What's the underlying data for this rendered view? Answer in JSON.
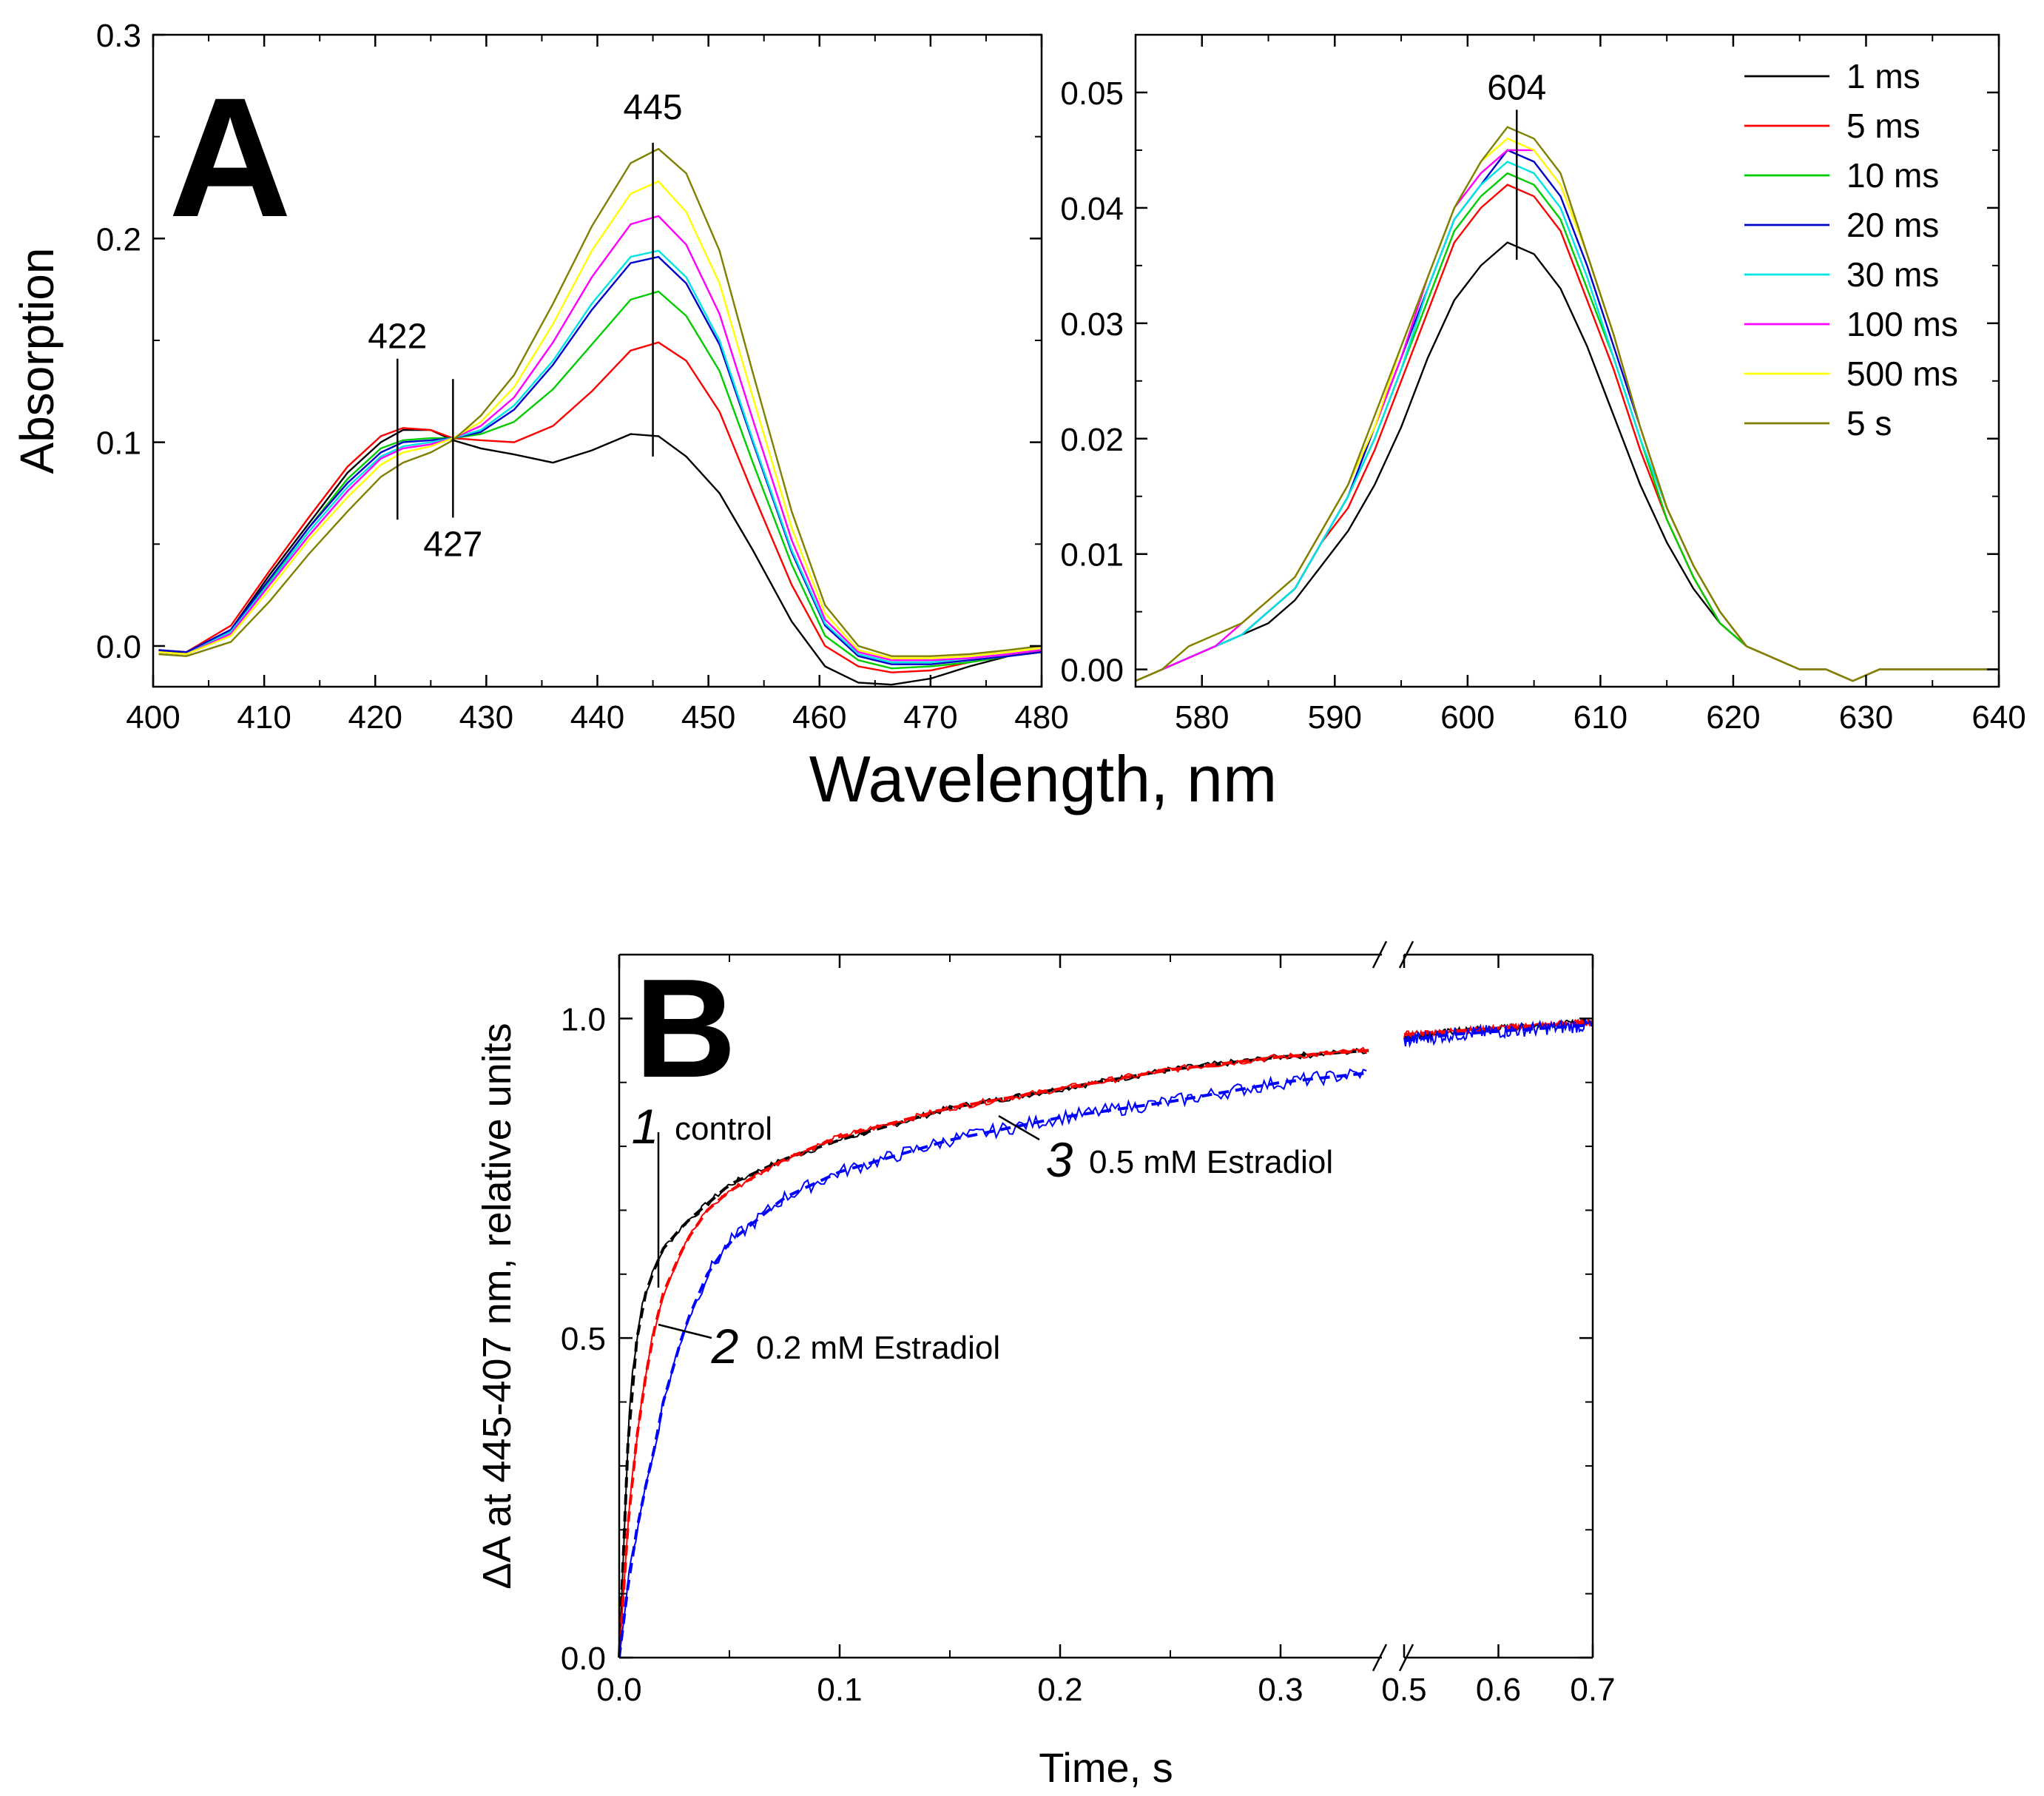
{
  "figure": {
    "panel_a_label": "A",
    "panel_b_label": "B",
    "shared_xlabel_a": "Wavelength, nm"
  },
  "chart_data": [
    {
      "id": "A-left",
      "type": "line",
      "title": "",
      "xlabel": "Wavelength, nm",
      "ylabel": "Absorption",
      "xlim": [
        400,
        480
      ],
      "ylim": [
        -0.02,
        0.3
      ],
      "xticks": [
        400,
        410,
        420,
        430,
        440,
        450,
        460,
        470,
        480
      ],
      "xtick_labels": [
        "400",
        "410",
        "420",
        "430",
        "440",
        "450",
        "460",
        "470",
        "480"
      ],
      "yticks": [
        0.0,
        0.1,
        0.2,
        0.3
      ],
      "ytick_labels": [
        "0.0",
        "0.1",
        "0.2",
        "0.3"
      ],
      "x": [
        400.5,
        403,
        407,
        410.5,
        414,
        417.5,
        420.5,
        422.5,
        425,
        427,
        429.5,
        432.5,
        436,
        439.5,
        443,
        445.5,
        448,
        451,
        454,
        457.5,
        460.5,
        463.5,
        466.5,
        470,
        473.5,
        477,
        480
      ],
      "series": [
        {
          "name": "1 ms",
          "color": "#000000",
          "values": [
            -0.002,
            -0.004,
            0.008,
            0.035,
            0.06,
            0.085,
            0.1,
            0.106,
            0.106,
            0.101,
            0.097,
            0.094,
            0.09,
            0.096,
            0.104,
            0.103,
            0.093,
            0.075,
            0.047,
            0.012,
            -0.01,
            -0.018,
            -0.019,
            -0.016,
            -0.01,
            -0.005,
            -0.003
          ]
        },
        {
          "name": "5 ms",
          "color": "#ff0000",
          "values": [
            -0.002,
            -0.003,
            0.01,
            0.037,
            0.063,
            0.088,
            0.103,
            0.107,
            0.106,
            0.102,
            0.101,
            0.1,
            0.108,
            0.125,
            0.145,
            0.149,
            0.14,
            0.115,
            0.075,
            0.03,
            0.0,
            -0.01,
            -0.013,
            -0.012,
            -0.008,
            -0.005,
            -0.002
          ]
        },
        {
          "name": "10 ms",
          "color": "#00cc00",
          "values": [
            -0.003,
            -0.004,
            0.007,
            0.032,
            0.058,
            0.082,
            0.097,
            0.101,
            0.102,
            0.102,
            0.104,
            0.11,
            0.126,
            0.148,
            0.17,
            0.174,
            0.162,
            0.135,
            0.09,
            0.04,
            0.005,
            -0.007,
            -0.011,
            -0.01,
            -0.008,
            -0.005,
            -0.003
          ]
        },
        {
          "name": "20 ms",
          "color": "#0000cc",
          "values": [
            -0.002,
            -0.003,
            0.008,
            0.033,
            0.058,
            0.08,
            0.095,
            0.1,
            0.101,
            0.102,
            0.105,
            0.116,
            0.138,
            0.165,
            0.188,
            0.191,
            0.178,
            0.148,
            0.1,
            0.046,
            0.01,
            -0.005,
            -0.009,
            -0.009,
            -0.007,
            -0.005,
            -0.003
          ]
        },
        {
          "name": "30 ms",
          "color": "#00e5e5",
          "values": [
            -0.003,
            -0.004,
            0.007,
            0.031,
            0.056,
            0.078,
            0.093,
            0.098,
            0.1,
            0.102,
            0.106,
            0.118,
            0.14,
            0.168,
            0.191,
            0.194,
            0.181,
            0.15,
            0.101,
            0.047,
            0.011,
            -0.004,
            -0.008,
            -0.008,
            -0.006,
            -0.004,
            -0.002
          ]
        },
        {
          "name": "100 ms",
          "color": "#ff00ff",
          "values": [
            -0.003,
            -0.004,
            0.006,
            0.03,
            0.054,
            0.076,
            0.092,
            0.097,
            0.099,
            0.102,
            0.108,
            0.122,
            0.149,
            0.181,
            0.207,
            0.211,
            0.197,
            0.163,
            0.111,
            0.052,
            0.013,
            -0.003,
            -0.007,
            -0.007,
            -0.006,
            -0.004,
            -0.002
          ]
        },
        {
          "name": "500 ms",
          "color": "#ffff00",
          "values": [
            -0.003,
            -0.004,
            0.005,
            0.028,
            0.052,
            0.073,
            0.089,
            0.095,
            0.098,
            0.102,
            0.11,
            0.127,
            0.158,
            0.194,
            0.222,
            0.228,
            0.213,
            0.178,
            0.122,
            0.058,
            0.016,
            -0.002,
            -0.006,
            -0.006,
            -0.005,
            -0.003,
            -0.001
          ]
        },
        {
          "name": "5 s",
          "color": "#808000",
          "values": [
            -0.004,
            -0.005,
            0.002,
            0.022,
            0.045,
            0.066,
            0.083,
            0.09,
            0.095,
            0.101,
            0.113,
            0.133,
            0.168,
            0.206,
            0.237,
            0.244,
            0.232,
            0.194,
            0.134,
            0.066,
            0.02,
            0.0,
            -0.005,
            -0.005,
            -0.004,
            -0.002,
            0.0
          ]
        }
      ],
      "annotations": [
        {
          "text": "422",
          "x": 422,
          "y1": 0.062,
          "y2": 0.141
        },
        {
          "text": "427",
          "x": 427,
          "y1": 0.063,
          "y2": 0.131
        },
        {
          "text": "445",
          "x": 445,
          "y1": 0.093,
          "y2": 0.247
        }
      ]
    },
    {
      "id": "A-right",
      "type": "line",
      "title": "",
      "xlabel": "Wavelength, nm",
      "ylabel": "",
      "xlim": [
        575,
        640
      ],
      "ylim": [
        -0.0015,
        0.055
      ],
      "xticks": [
        580,
        590,
        600,
        610,
        620,
        630,
        640
      ],
      "xtick_labels": [
        "580",
        "590",
        "600",
        "610",
        "620",
        "630",
        "640"
      ],
      "yticks": [
        0.0,
        0.01,
        0.02,
        0.03,
        0.04,
        0.05
      ],
      "ytick_labels": [
        "0.00",
        "0.01",
        "0.02",
        "0.03",
        "0.04",
        "0.05"
      ],
      "x": [
        575,
        577,
        579,
        581,
        583,
        585,
        587,
        589,
        591,
        593,
        595,
        597,
        599,
        601,
        603,
        605,
        607,
        609,
        611,
        613,
        615,
        617,
        619,
        621,
        623,
        625,
        627,
        629,
        631,
        633,
        635,
        637,
        639,
        640
      ],
      "series": [
        {
          "name": "1 ms",
          "color": "#000000",
          "values": [
            -0.001,
            0.0,
            0.001,
            0.002,
            0.003,
            0.004,
            0.006,
            0.009,
            0.012,
            0.016,
            0.021,
            0.027,
            0.032,
            0.035,
            0.037,
            0.036,
            0.033,
            0.028,
            0.022,
            0.016,
            0.011,
            0.007,
            0.004,
            0.002,
            0.001,
            0.0,
            0.0,
            -0.001,
            0.0,
            0.0,
            0.0,
            0.0,
            0.0,
            0.0
          ]
        },
        {
          "name": "5 ms",
          "color": "#ff0000",
          "values": [
            -0.001,
            0.0,
            0.001,
            0.002,
            0.003,
            0.005,
            0.007,
            0.011,
            0.014,
            0.019,
            0.025,
            0.031,
            0.037,
            0.04,
            0.042,
            0.041,
            0.038,
            0.032,
            0.026,
            0.019,
            0.013,
            0.008,
            0.004,
            0.002,
            0.001,
            0.0,
            0.0,
            -0.001,
            0.0,
            0.0,
            0.0,
            0.0,
            0.0,
            0.0
          ]
        },
        {
          "name": "10 ms",
          "color": "#00cc00",
          "values": [
            -0.001,
            0.0,
            0.001,
            0.002,
            0.003,
            0.005,
            0.007,
            0.011,
            0.015,
            0.02,
            0.026,
            0.032,
            0.038,
            0.041,
            0.043,
            0.042,
            0.039,
            0.033,
            0.027,
            0.02,
            0.013,
            0.008,
            0.004,
            0.002,
            0.001,
            0.0,
            0.0,
            -0.001,
            0.0,
            0.0,
            0.0,
            0.0,
            0.0,
            0.0
          ]
        },
        {
          "name": "20 ms",
          "color": "#0000cc",
          "values": [
            -0.001,
            0.0,
            0.001,
            0.002,
            0.003,
            0.005,
            0.007,
            0.011,
            0.015,
            0.021,
            0.027,
            0.033,
            0.039,
            0.042,
            0.045,
            0.044,
            0.041,
            0.035,
            0.028,
            0.021,
            0.014,
            0.009,
            0.005,
            0.002,
            0.001,
            0.0,
            0.0,
            -0.001,
            0.0,
            0.0,
            0.0,
            0.0,
            0.0,
            0.0
          ]
        },
        {
          "name": "30 ms",
          "color": "#00e5e5",
          "values": [
            -0.001,
            0.0,
            0.001,
            0.002,
            0.003,
            0.005,
            0.007,
            0.011,
            0.015,
            0.02,
            0.026,
            0.033,
            0.039,
            0.042,
            0.044,
            0.043,
            0.04,
            0.034,
            0.027,
            0.02,
            0.014,
            0.009,
            0.005,
            0.002,
            0.001,
            0.0,
            0.0,
            -0.001,
            0.0,
            0.0,
            0.0,
            0.0,
            0.0,
            0.0
          ]
        },
        {
          "name": "100 ms",
          "color": "#ff00ff",
          "values": [
            -0.001,
            0.0,
            0.001,
            0.002,
            0.004,
            0.006,
            0.008,
            0.012,
            0.016,
            0.021,
            0.027,
            0.034,
            0.04,
            0.043,
            0.045,
            0.045,
            0.042,
            0.036,
            0.029,
            0.021,
            0.014,
            0.009,
            0.005,
            0.002,
            0.001,
            0.0,
            0.0,
            -0.001,
            0.0,
            0.0,
            0.0,
            0.0,
            0.0,
            0.0
          ]
        },
        {
          "name": "500 ms",
          "color": "#ffff00",
          "values": [
            -0.001,
            0.0,
            0.002,
            0.003,
            0.004,
            0.006,
            0.008,
            0.012,
            0.016,
            0.021,
            0.028,
            0.034,
            0.04,
            0.044,
            0.046,
            0.045,
            0.042,
            0.036,
            0.029,
            0.021,
            0.014,
            0.009,
            0.005,
            0.002,
            0.001,
            0.0,
            0.0,
            -0.001,
            0.0,
            0.0,
            0.0,
            0.0,
            0.0,
            0.0
          ]
        },
        {
          "name": "5 s",
          "color": "#808000",
          "values": [
            -0.001,
            0.0,
            0.002,
            0.003,
            0.004,
            0.006,
            0.008,
            0.012,
            0.016,
            0.022,
            0.028,
            0.034,
            0.04,
            0.044,
            0.047,
            0.046,
            0.043,
            0.036,
            0.029,
            0.021,
            0.014,
            0.009,
            0.005,
            0.002,
            0.001,
            0.0,
            0.0,
            -0.001,
            0.0,
            0.0,
            0.0,
            0.0,
            0.0,
            0.0
          ]
        }
      ],
      "annotations": [
        {
          "text": "604",
          "x": 603.7,
          "y1": 0.0355,
          "y2": 0.0485
        }
      ],
      "legend": {
        "placement": "top-right",
        "entries": [
          "1 ms",
          "5 ms",
          "10 ms",
          "20 ms",
          "30 ms",
          "100 ms",
          "500 ms",
          "5 s"
        ]
      }
    },
    {
      "id": "B",
      "type": "line",
      "title": "",
      "xlabel": "Time, s",
      "ylabel": "ΔA at 445-407 nm, relative units",
      "xlim": [
        0,
        0.7
      ],
      "x_axis_break": {
        "left_segment": [
          0,
          0.34
        ],
        "right_segment": [
          0.5,
          0.7
        ]
      },
      "ylim": [
        0,
        1.1
      ],
      "xticks": [
        0.0,
        0.1,
        0.2,
        0.3,
        0.5,
        0.6,
        0.7
      ],
      "xtick_labels": [
        "0.0",
        "0.1",
        "0.2",
        "0.3",
        "0.5",
        "0.6",
        "0.7"
      ],
      "yticks": [
        0.0,
        0.5,
        1.0
      ],
      "ytick_labels": [
        "0.0",
        "0.5",
        "1.0"
      ],
      "series": [
        {
          "name": "1 control",
          "color": "#000000",
          "style": "solid+dashed-fit",
          "x": [
            0.0,
            0.005,
            0.01,
            0.015,
            0.02,
            0.03,
            0.04,
            0.05,
            0.075,
            0.1,
            0.15,
            0.2,
            0.25,
            0.3,
            0.34,
            0.5,
            0.55,
            0.6,
            0.65,
            0.7
          ],
          "values": [
            0.0,
            0.42,
            0.55,
            0.6,
            0.64,
            0.68,
            0.71,
            0.74,
            0.78,
            0.81,
            0.86,
            0.89,
            0.92,
            0.94,
            0.95,
            0.97,
            0.98,
            0.985,
            0.99,
            0.995
          ]
        },
        {
          "name": "2 0.2 mM Estradiol",
          "color": "#ff0000",
          "style": "solid+dashed-fit",
          "x": [
            0.0,
            0.005,
            0.01,
            0.015,
            0.02,
            0.03,
            0.04,
            0.05,
            0.075,
            0.1,
            0.15,
            0.2,
            0.25,
            0.3,
            0.34,
            0.5,
            0.55,
            0.6,
            0.65,
            0.7
          ],
          "values": [
            0.0,
            0.26,
            0.4,
            0.5,
            0.57,
            0.65,
            0.7,
            0.73,
            0.78,
            0.815,
            0.86,
            0.89,
            0.92,
            0.94,
            0.95,
            0.975,
            0.98,
            0.985,
            0.99,
            0.995
          ]
        },
        {
          "name": "3 0.5 mM Estradiol",
          "color": "#0000ff",
          "style": "solid+dashed-fit",
          "x": [
            0.0,
            0.005,
            0.01,
            0.015,
            0.02,
            0.03,
            0.04,
            0.05,
            0.075,
            0.1,
            0.15,
            0.2,
            0.25,
            0.3,
            0.34,
            0.5,
            0.55,
            0.6,
            0.65,
            0.7
          ],
          "values": [
            0.0,
            0.14,
            0.24,
            0.31,
            0.4,
            0.52,
            0.6,
            0.65,
            0.72,
            0.76,
            0.81,
            0.845,
            0.87,
            0.9,
            0.915,
            0.965,
            0.975,
            0.98,
            0.985,
            0.99
          ]
        }
      ],
      "annotations": [
        {
          "num": "1",
          "label": "control"
        },
        {
          "num": "2",
          "label": "0.2 mM Estradiol"
        },
        {
          "num": "3",
          "label": "0.5 mM Estradiol"
        }
      ]
    }
  ]
}
